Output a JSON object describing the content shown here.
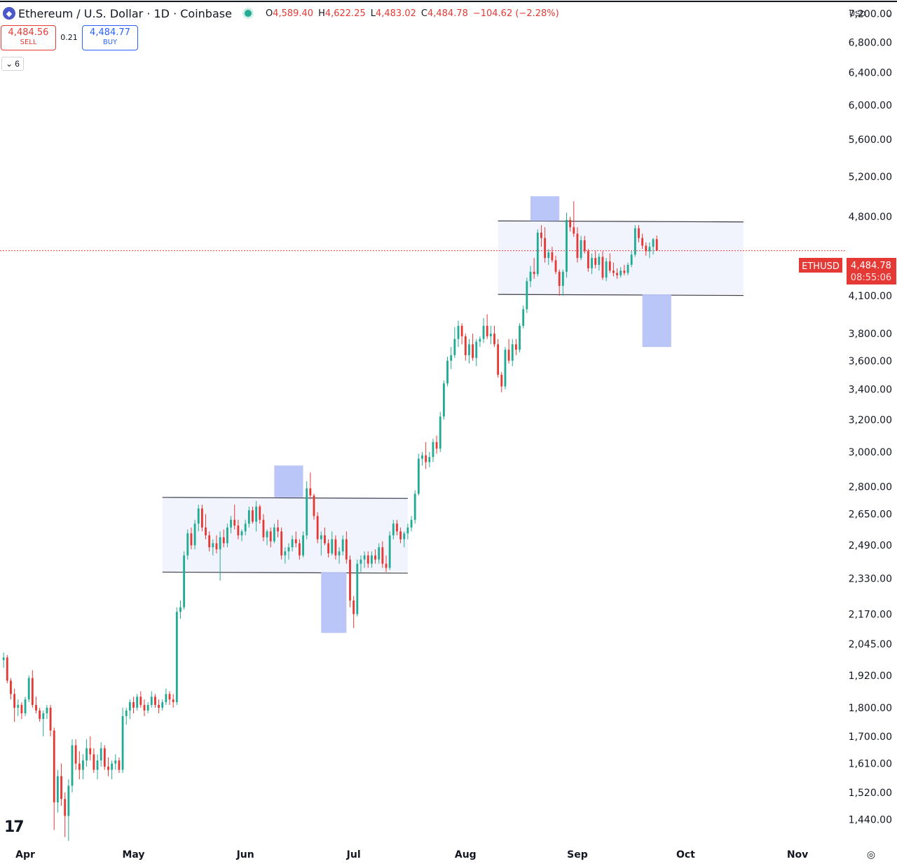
{
  "header": {
    "title": "Ethereum / U.S. Dollar · 1D · Coinbase",
    "open_label": "O",
    "open": "4,589.40",
    "high_label": "H",
    "high": "4,622.25",
    "low_label": "L",
    "low": "4,483.02",
    "close_label": "C",
    "close": "4,484.78",
    "change": "−104.62 (−2.28%)",
    "logo_glyph": "◆",
    "status_color": "#22ab94"
  },
  "trade": {
    "sell_price": "4,484.56",
    "sell_label": "SELL",
    "spread": "0.21",
    "buy_price": "4,484.77",
    "buy_label": "BUY"
  },
  "indicators_toggle": {
    "chevron_glyph": "⌄",
    "count": "6"
  },
  "currency_selector": {
    "value": "USD",
    "chevron_glyph": "⌄"
  },
  "branding": {
    "logo_text": "17"
  },
  "settings": {
    "icon_glyph": "◎"
  },
  "colors": {
    "up": "#22ab94",
    "down": "#e53935",
    "zone_fill": "#f1f3fd",
    "highlight": "#b7c3f8",
    "price_line": "#e53935"
  },
  "chart_data": {
    "type": "candlestick",
    "symbol": "ETHUSD",
    "last_price": "4,484.78",
    "countdown": "08:55:06",
    "y_scale": "log",
    "ylim": [
      1370,
      7400
    ],
    "y_ticks": [
      1440,
      1520,
      1610,
      1700,
      1800,
      1920,
      2045,
      2170,
      2330,
      2490,
      2650,
      2800,
      3000,
      3200,
      3400,
      3600,
      3800,
      4100,
      4800,
      5200,
      5600,
      6000,
      6400,
      6800,
      7200
    ],
    "y_tick_labels": [
      "1,440.00",
      "1,520.00",
      "1,610.00",
      "1,700.00",
      "1,800.00",
      "1,920.00",
      "2,045.00",
      "2,170.00",
      "2,330.00",
      "2,490.00",
      "2,650.00",
      "2,800.00",
      "3,000.00",
      "3,200.00",
      "3,400.00",
      "3,600.00",
      "3,800.00",
      "4,100.00",
      "4,800.00",
      "5,200.00",
      "5,600.00",
      "6,000.00",
      "6,400.00",
      "6,800.00",
      "7,200.00"
    ],
    "x_ticks": [
      {
        "label": "Apr",
        "date": "2025-04-01"
      },
      {
        "label": "May",
        "date": "2025-05-01"
      },
      {
        "label": "Jun",
        "date": "2025-06-01"
      },
      {
        "label": "Jul",
        "date": "2025-07-01"
      },
      {
        "label": "Aug",
        "date": "2025-08-01"
      },
      {
        "label": "Sep",
        "date": "2025-09-01"
      },
      {
        "label": "Oct",
        "date": "2025-10-01"
      },
      {
        "label": "Nov",
        "date": "2025-11-01"
      }
    ],
    "xlim": [
      "2025-03-25",
      "2025-11-14"
    ],
    "start_date": "2025-03-26",
    "candles": [
      [
        1980,
        2010,
        1950,
        1990
      ],
      [
        1990,
        2000,
        1890,
        1900
      ],
      [
        1900,
        1910,
        1830,
        1850
      ],
      [
        1850,
        1870,
        1750,
        1800
      ],
      [
        1800,
        1830,
        1770,
        1810
      ],
      [
        1810,
        1820,
        1760,
        1780
      ],
      [
        1780,
        1840,
        1770,
        1830
      ],
      [
        1830,
        1920,
        1820,
        1910
      ],
      [
        1910,
        1940,
        1800,
        1810
      ],
      [
        1810,
        1840,
        1780,
        1790
      ],
      [
        1790,
        1800,
        1750,
        1760
      ],
      [
        1760,
        1790,
        1700,
        1780
      ],
      [
        1780,
        1810,
        1760,
        1800
      ],
      [
        1800,
        1810,
        1700,
        1720
      ],
      [
        1720,
        1730,
        1410,
        1490
      ],
      [
        1490,
        1590,
        1460,
        1570
      ],
      [
        1570,
        1610,
        1480,
        1500
      ],
      [
        1500,
        1520,
        1390,
        1450
      ],
      [
        1450,
        1560,
        1380,
        1540
      ],
      [
        1540,
        1690,
        1520,
        1670
      ],
      [
        1670,
        1690,
        1590,
        1610
      ],
      [
        1610,
        1650,
        1560,
        1590
      ],
      [
        1590,
        1640,
        1560,
        1620
      ],
      [
        1620,
        1690,
        1600,
        1660
      ],
      [
        1660,
        1700,
        1620,
        1640
      ],
      [
        1640,
        1660,
        1580,
        1590
      ],
      [
        1590,
        1640,
        1560,
        1620
      ],
      [
        1620,
        1680,
        1600,
        1660
      ],
      [
        1660,
        1670,
        1590,
        1600
      ],
      [
        1600,
        1630,
        1570,
        1590
      ],
      [
        1590,
        1620,
        1560,
        1610
      ],
      [
        1610,
        1640,
        1590,
        1620
      ],
      [
        1620,
        1630,
        1580,
        1590
      ],
      [
        1590,
        1800,
        1580,
        1770
      ],
      [
        1770,
        1800,
        1740,
        1790
      ],
      [
        1790,
        1830,
        1760,
        1820
      ],
      [
        1820,
        1840,
        1780,
        1800
      ],
      [
        1800,
        1850,
        1790,
        1840
      ],
      [
        1840,
        1860,
        1800,
        1810
      ],
      [
        1810,
        1830,
        1770,
        1790
      ],
      [
        1790,
        1820,
        1780,
        1810
      ],
      [
        1810,
        1860,
        1800,
        1840
      ],
      [
        1840,
        1850,
        1800,
        1810
      ],
      [
        1810,
        1830,
        1780,
        1800
      ],
      [
        1800,
        1830,
        1790,
        1820
      ],
      [
        1820,
        1870,
        1810,
        1850
      ],
      [
        1850,
        1860,
        1810,
        1830
      ],
      [
        1830,
        1850,
        1800,
        1820
      ],
      [
        1820,
        2200,
        1810,
        2180
      ],
      [
        2180,
        2230,
        2150,
        2200
      ],
      [
        2200,
        2460,
        2190,
        2440
      ],
      [
        2440,
        2570,
        2420,
        2550
      ],
      [
        2550,
        2580,
        2470,
        2490
      ],
      [
        2490,
        2620,
        2470,
        2600
      ],
      [
        2600,
        2700,
        2560,
        2680
      ],
      [
        2680,
        2700,
        2560,
        2580
      ],
      [
        2580,
        2650,
        2520,
        2540
      ],
      [
        2540,
        2560,
        2460,
        2480
      ],
      [
        2480,
        2520,
        2440,
        2500
      ],
      [
        2500,
        2540,
        2450,
        2470
      ],
      [
        2470,
        2560,
        2320,
        2530
      ],
      [
        2530,
        2570,
        2480,
        2500
      ],
      [
        2500,
        2600,
        2480,
        2580
      ],
      [
        2580,
        2640,
        2550,
        2620
      ],
      [
        2620,
        2700,
        2570,
        2590
      ],
      [
        2590,
        2620,
        2520,
        2540
      ],
      [
        2540,
        2570,
        2510,
        2560
      ],
      [
        2560,
        2620,
        2540,
        2600
      ],
      [
        2600,
        2690,
        2580,
        2670
      ],
      [
        2670,
        2690,
        2600,
        2610
      ],
      [
        2610,
        2720,
        2560,
        2690
      ],
      [
        2690,
        2700,
        2600,
        2620
      ],
      [
        2620,
        2650,
        2510,
        2530
      ],
      [
        2530,
        2570,
        2490,
        2560
      ],
      [
        2560,
        2580,
        2480,
        2510
      ],
      [
        2510,
        2600,
        2500,
        2580
      ],
      [
        2580,
        2620,
        2530,
        2560
      ],
      [
        2560,
        2580,
        2420,
        2440
      ],
      [
        2440,
        2480,
        2400,
        2460
      ],
      [
        2460,
        2500,
        2420,
        2480
      ],
      [
        2480,
        2540,
        2460,
        2520
      ],
      [
        2520,
        2560,
        2480,
        2500
      ],
      [
        2500,
        2520,
        2420,
        2440
      ],
      [
        2440,
        2560,
        2430,
        2540
      ],
      [
        2540,
        2830,
        2520,
        2790
      ],
      [
        2790,
        2880,
        2730,
        2750
      ],
      [
        2750,
        2760,
        2620,
        2640
      ],
      [
        2640,
        2660,
        2500,
        2520
      ],
      [
        2520,
        2560,
        2440,
        2540
      ],
      [
        2540,
        2580,
        2490,
        2500
      ],
      [
        2500,
        2520,
        2430,
        2450
      ],
      [
        2450,
        2560,
        2440,
        2520
      ],
      [
        2520,
        2540,
        2420,
        2440
      ],
      [
        2440,
        2480,
        2400,
        2460
      ],
      [
        2460,
        2540,
        2440,
        2520
      ],
      [
        2520,
        2560,
        2400,
        2420
      ],
      [
        2420,
        2440,
        2200,
        2230
      ],
      [
        2230,
        2250,
        2110,
        2170
      ],
      [
        2170,
        2420,
        2160,
        2400
      ],
      [
        2400,
        2440,
        2360,
        2420
      ],
      [
        2420,
        2460,
        2380,
        2440
      ],
      [
        2440,
        2460,
        2380,
        2400
      ],
      [
        2400,
        2460,
        2380,
        2440
      ],
      [
        2440,
        2470,
        2400,
        2420
      ],
      [
        2420,
        2500,
        2400,
        2480
      ],
      [
        2480,
        2510,
        2380,
        2400
      ],
      [
        2400,
        2440,
        2360,
        2380
      ],
      [
        2380,
        2560,
        2370,
        2540
      ],
      [
        2540,
        2620,
        2520,
        2600
      ],
      [
        2600,
        2620,
        2540,
        2560
      ],
      [
        2560,
        2580,
        2500,
        2520
      ],
      [
        2520,
        2560,
        2480,
        2550
      ],
      [
        2550,
        2600,
        2520,
        2580
      ],
      [
        2580,
        2640,
        2560,
        2620
      ],
      [
        2620,
        2780,
        2600,
        2760
      ],
      [
        2760,
        2990,
        2750,
        2960
      ],
      [
        2960,
        3000,
        2920,
        2980
      ],
      [
        2980,
        3060,
        2900,
        2940
      ],
      [
        2940,
        3000,
        2910,
        2970
      ],
      [
        2970,
        3080,
        2940,
        3060
      ],
      [
        3060,
        3100,
        2990,
        3020
      ],
      [
        3020,
        3250,
        3000,
        3220
      ],
      [
        3220,
        3460,
        3200,
        3440
      ],
      [
        3440,
        3630,
        3420,
        3600
      ],
      [
        3600,
        3700,
        3540,
        3640
      ],
      [
        3640,
        3850,
        3620,
        3760
      ],
      [
        3760,
        3900,
        3700,
        3860
      ],
      [
        3860,
        3880,
        3720,
        3780
      ],
      [
        3780,
        3800,
        3600,
        3640
      ],
      [
        3640,
        3760,
        3580,
        3720
      ],
      [
        3720,
        3800,
        3600,
        3620
      ],
      [
        3620,
        3760,
        3560,
        3740
      ],
      [
        3740,
        3780,
        3700,
        3760
      ],
      [
        3760,
        3920,
        3730,
        3860
      ],
      [
        3860,
        3950,
        3760,
        3780
      ],
      [
        3780,
        3860,
        3720,
        3800
      ],
      [
        3800,
        3860,
        3700,
        3720
      ],
      [
        3720,
        3760,
        3480,
        3500
      ],
      [
        3500,
        3520,
        3380,
        3420
      ],
      [
        3420,
        3700,
        3400,
        3680
      ],
      [
        3680,
        3760,
        3580,
        3600
      ],
      [
        3600,
        3760,
        3560,
        3720
      ],
      [
        3720,
        3760,
        3640,
        3680
      ],
      [
        3680,
        3880,
        3660,
        3860
      ],
      [
        3860,
        4020,
        3840,
        3990
      ],
      [
        3990,
        4250,
        3960,
        4220
      ],
      [
        4220,
        4350,
        4170,
        4300
      ],
      [
        4300,
        4420,
        4240,
        4280
      ],
      [
        4280,
        4680,
        4260,
        4650
      ],
      [
        4650,
        4720,
        4520,
        4600
      ],
      [
        4600,
        4700,
        4380,
        4420
      ],
      [
        4420,
        4500,
        4360,
        4470
      ],
      [
        4470,
        4520,
        4380,
        4400
      ],
      [
        4400,
        4440,
        4280,
        4300
      ],
      [
        4300,
        4320,
        4100,
        4180
      ],
      [
        4180,
        4320,
        4100,
        4300
      ],
      [
        4300,
        4840,
        4250,
        4770
      ],
      [
        4770,
        4800,
        4660,
        4700
      ],
      [
        4700,
        4950,
        4610,
        4640
      ],
      [
        4640,
        4700,
        4380,
        4420
      ],
      [
        4420,
        4620,
        4400,
        4580
      ],
      [
        4580,
        4620,
        4460,
        4480
      ],
      [
        4480,
        4500,
        4300,
        4330
      ],
      [
        4330,
        4460,
        4280,
        4420
      ],
      [
        4420,
        4480,
        4330,
        4360
      ],
      [
        4360,
        4460,
        4310,
        4430
      ],
      [
        4430,
        4480,
        4230,
        4250
      ],
      [
        4250,
        4420,
        4220,
        4390
      ],
      [
        4390,
        4460,
        4290,
        4310
      ],
      [
        4310,
        4380,
        4260,
        4290
      ],
      [
        4290,
        4330,
        4240,
        4270
      ],
      [
        4270,
        4340,
        4250,
        4310
      ],
      [
        4310,
        4360,
        4270,
        4290
      ],
      [
        4290,
        4380,
        4270,
        4360
      ],
      [
        4360,
        4480,
        4340,
        4450
      ],
      [
        4450,
        4720,
        4430,
        4690
      ],
      [
        4690,
        4720,
        4560,
        4600
      ],
      [
        4600,
        4640,
        4500,
        4530
      ],
      [
        4530,
        4560,
        4440,
        4480
      ],
      [
        4480,
        4560,
        4420,
        4520
      ],
      [
        4520,
        4600,
        4450,
        4589
      ],
      [
        4589.4,
        4622.25,
        4483.02,
        4484.78
      ]
    ],
    "zones": [
      {
        "from": "2025-05-09",
        "to": "2025-07-16",
        "top": 2740,
        "bottom": 2360
      },
      {
        "from": "2025-08-10",
        "to": "2025-10-17",
        "top": 4760,
        "bottom": 4110
      }
    ],
    "highlights": [
      {
        "from": "2025-06-09",
        "to": "2025-06-17",
        "top": 2920,
        "bottom": 2740
      },
      {
        "from": "2025-06-22",
        "to": "2025-06-29",
        "top": 2360,
        "bottom": 2090
      },
      {
        "from": "2025-08-19",
        "to": "2025-08-27",
        "top": 5000,
        "bottom": 4760
      },
      {
        "from": "2025-09-19",
        "to": "2025-09-27",
        "top": 4110,
        "bottom": 3700
      }
    ]
  }
}
